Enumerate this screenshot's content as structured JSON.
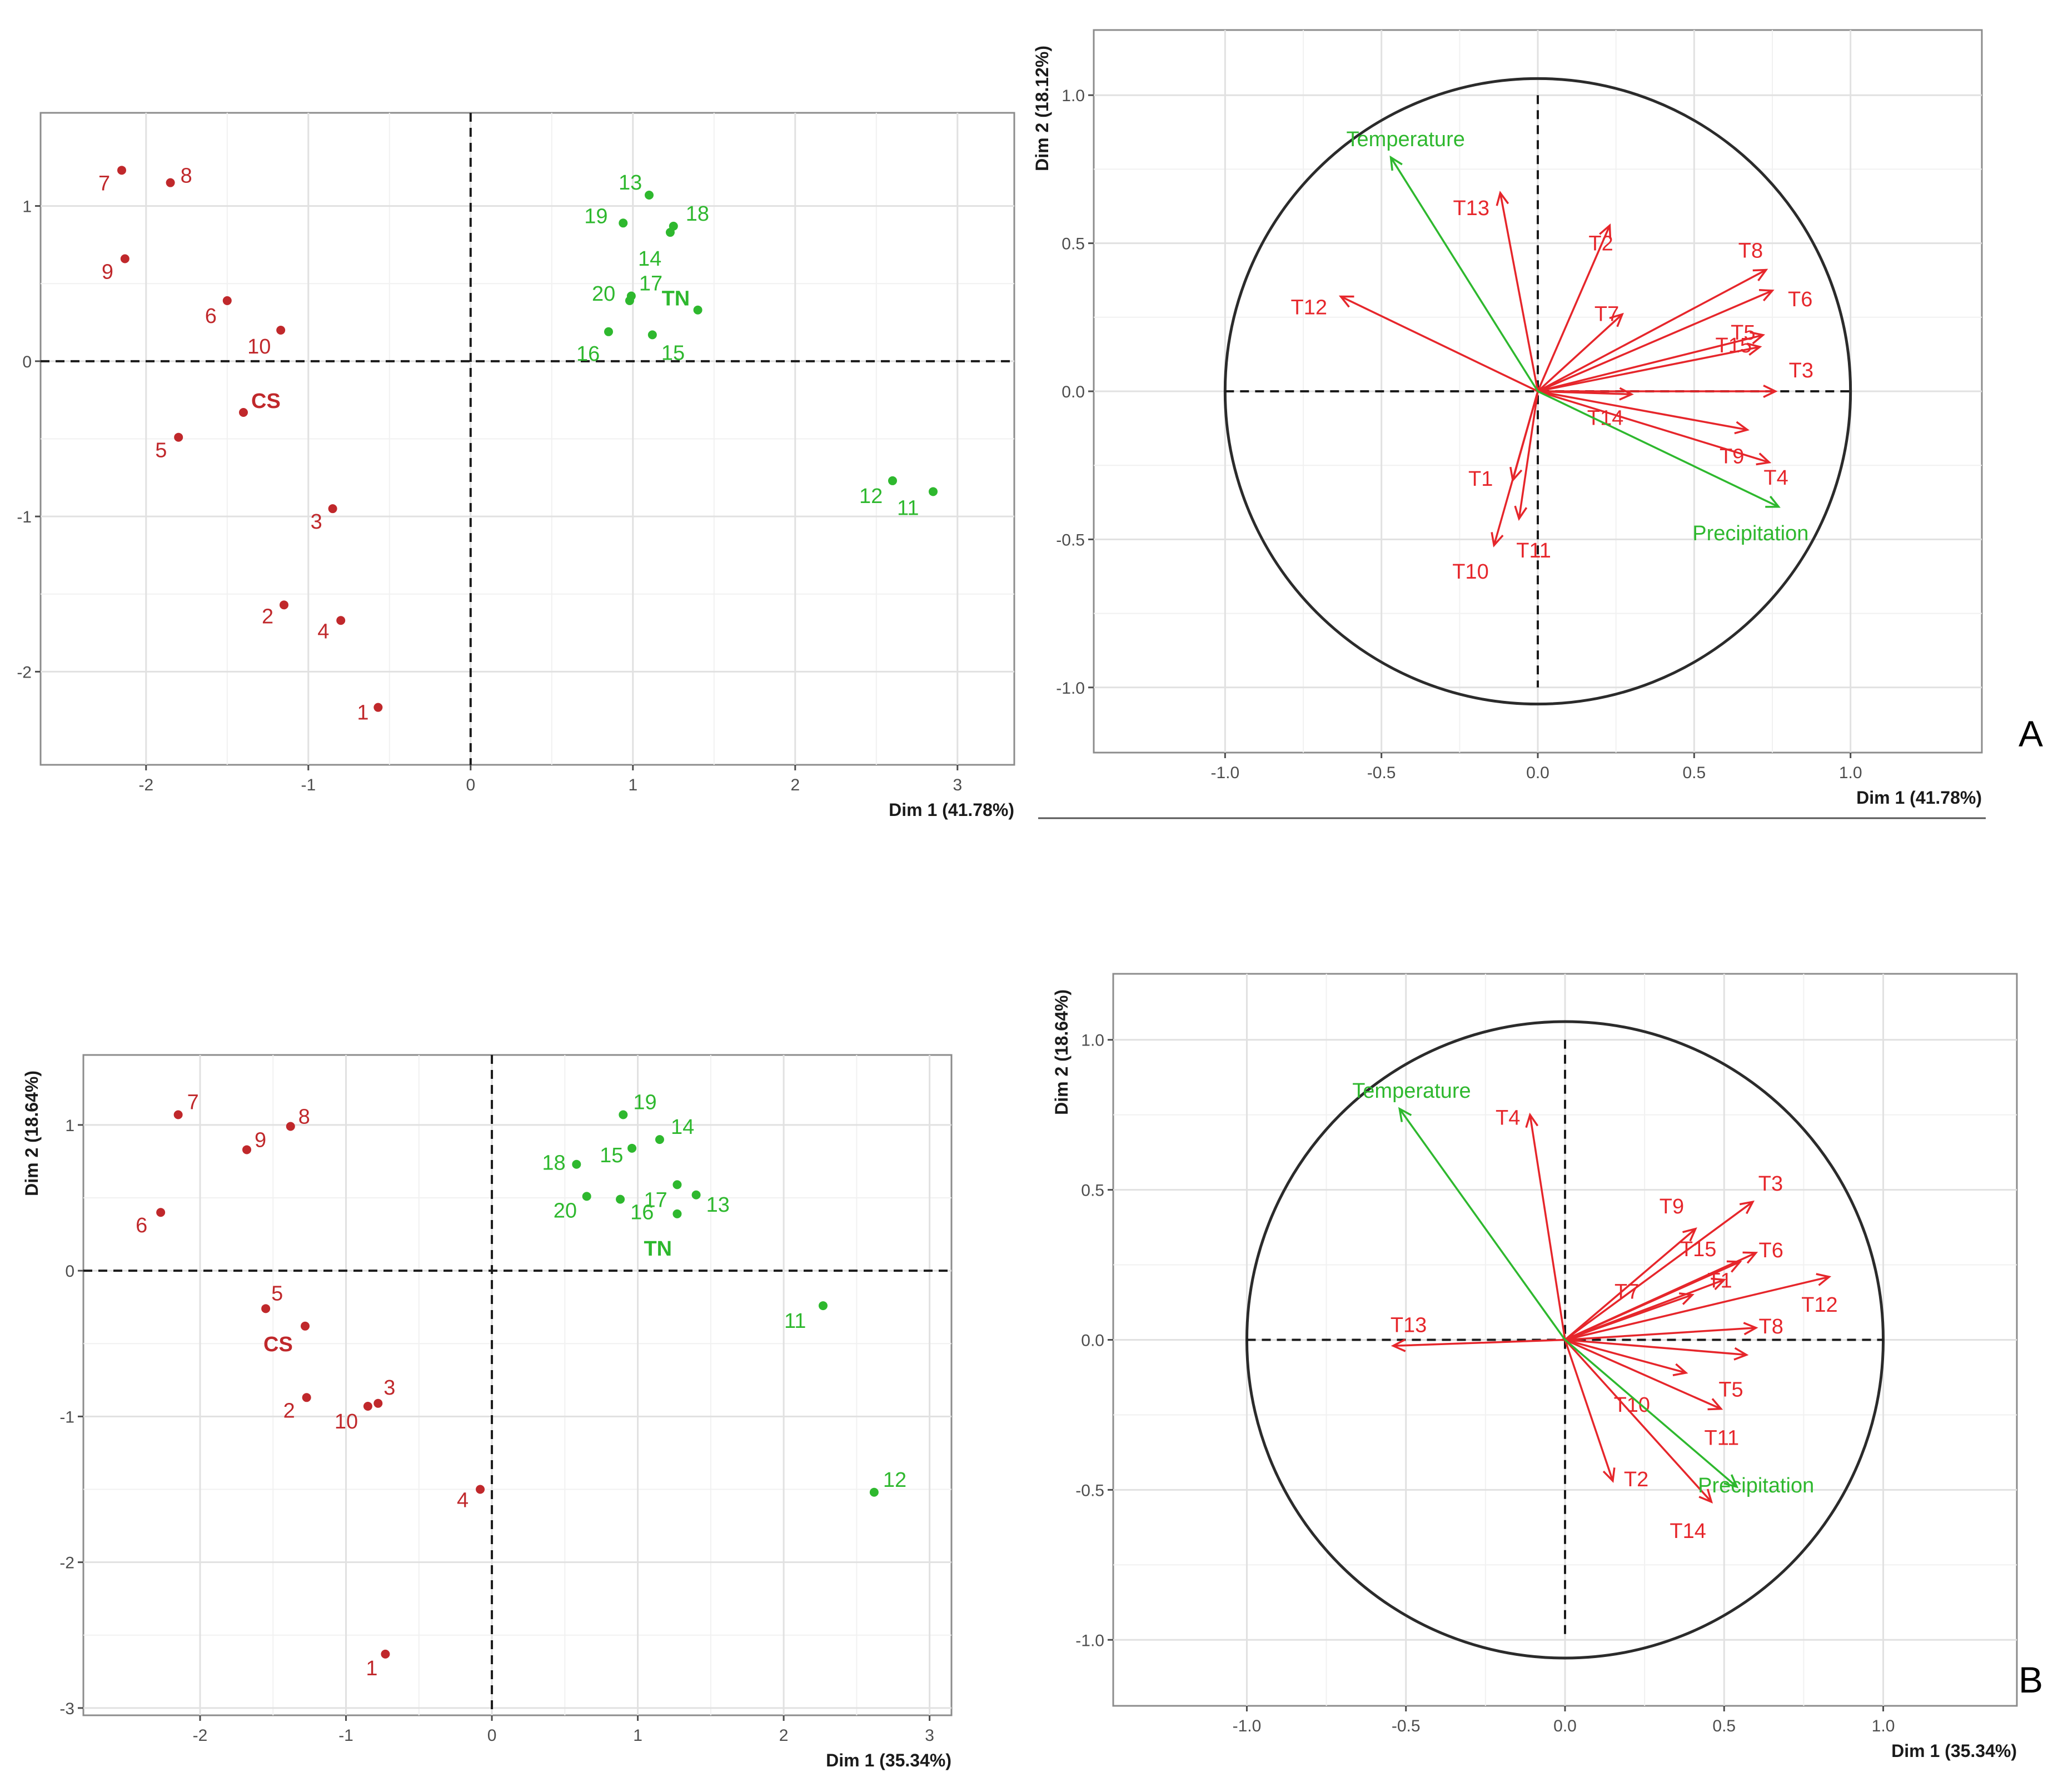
{
  "colors": {
    "cs": "#c0282b",
    "tn": "#2eb82e",
    "variable": "#e6262b",
    "supplementary": "#2eb82e"
  },
  "panel_tags": {
    "a": "A",
    "b": "B"
  },
  "chart_data": [
    {
      "id": "A-individuals",
      "type": "scatter",
      "xlabel": "Dim 1 (41.78%)",
      "ylabel": "Dim 2 (18.12%)",
      "xlim": [
        -2.65,
        3.35
      ],
      "ylim": [
        -2.6,
        1.6
      ],
      "xticks": [
        -2,
        -1,
        0,
        1,
        2,
        3
      ],
      "yticks": [
        -2,
        -1,
        0,
        1
      ],
      "series": [
        {
          "name": "CS",
          "color_key": "cs",
          "points": [
            {
              "label": "1",
              "x": -0.57,
              "y": -2.23
            },
            {
              "label": "2",
              "x": -1.15,
              "y": -1.57
            },
            {
              "label": "3",
              "x": -0.85,
              "y": -0.95
            },
            {
              "label": "4",
              "x": -0.8,
              "y": -1.67
            },
            {
              "label": "5",
              "x": -1.8,
              "y": -0.49
            },
            {
              "label": "6",
              "x": -1.5,
              "y": 0.39
            },
            {
              "label": "7",
              "x": -2.15,
              "y": 1.23
            },
            {
              "label": "8",
              "x": -1.85,
              "y": 1.15
            },
            {
              "label": "9",
              "x": -2.13,
              "y": 0.66
            },
            {
              "label": "10",
              "x": -1.17,
              "y": 0.2
            }
          ],
          "centroid": {
            "label": "CS",
            "x": -1.4,
            "y": -0.33
          }
        },
        {
          "name": "TN",
          "color_key": "tn",
          "points": [
            {
              "label": "11",
              "x": 2.85,
              "y": -0.84
            },
            {
              "label": "12",
              "x": 2.6,
              "y": -0.77
            },
            {
              "label": "13",
              "x": 1.1,
              "y": 1.07
            },
            {
              "label": "14",
              "x": 1.23,
              "y": 0.83
            },
            {
              "label": "15",
              "x": 1.12,
              "y": 0.17
            },
            {
              "label": "16",
              "x": 0.85,
              "y": 0.19
            },
            {
              "label": "17",
              "x": 0.99,
              "y": 0.42
            },
            {
              "label": "18",
              "x": 1.25,
              "y": 0.87
            },
            {
              "label": "19",
              "x": 0.94,
              "y": 0.89
            },
            {
              "label": "20",
              "x": 0.98,
              "y": 0.39
            }
          ],
          "centroid": {
            "label": "TN",
            "x": 1.4,
            "y": 0.33
          }
        }
      ]
    },
    {
      "id": "A-variables",
      "type": "scatter",
      "subtype": "correlation-circle",
      "xlabel": "Dim 1 (41.78%)",
      "ylabel": "Dim 2 (18.12%)",
      "xlim": [
        -1.42,
        1.42
      ],
      "ylim": [
        -1.22,
        1.22
      ],
      "xticks": [
        -1.0,
        -0.5,
        0.0,
        0.5,
        1.0
      ],
      "yticks": [
        -1.0,
        -0.5,
        0.0,
        0.5,
        1.0
      ],
      "tick_labels": [
        "-1.0",
        "-0.5",
        "0.0",
        "0.5",
        "1.0"
      ],
      "vectors": [
        {
          "label": "T1",
          "x": -0.08,
          "y": -0.3,
          "color_key": "variable"
        },
        {
          "label": "T2",
          "x": 0.23,
          "y": 0.56,
          "color_key": "variable"
        },
        {
          "label": "T3",
          "x": 0.76,
          "y": 0.0,
          "color_key": "variable"
        },
        {
          "label": "T4",
          "x": 0.74,
          "y": -0.24,
          "color_key": "variable"
        },
        {
          "label": "T5",
          "x": 0.72,
          "y": 0.19,
          "color_key": "variable"
        },
        {
          "label": "T6",
          "x": 0.75,
          "y": 0.34,
          "color_key": "variable"
        },
        {
          "label": "T7",
          "x": 0.27,
          "y": 0.26,
          "color_key": "variable"
        },
        {
          "label": "T8",
          "x": 0.73,
          "y": 0.41,
          "color_key": "variable"
        },
        {
          "label": "T9",
          "x": 0.67,
          "y": -0.13,
          "color_key": "variable"
        },
        {
          "label": "T10",
          "x": -0.14,
          "y": -0.52,
          "color_key": "variable"
        },
        {
          "label": "T11",
          "x": -0.06,
          "y": -0.43,
          "color_key": "variable"
        },
        {
          "label": "T12",
          "x": -0.63,
          "y": 0.32,
          "color_key": "variable"
        },
        {
          "label": "T13",
          "x": -0.12,
          "y": 0.67,
          "color_key": "variable"
        },
        {
          "label": "T14",
          "x": 0.3,
          "y": -0.01,
          "color_key": "variable"
        },
        {
          "label": "T15",
          "x": 0.71,
          "y": 0.15,
          "color_key": "variable"
        },
        {
          "label": "Temperature",
          "x": -0.47,
          "y": 0.79,
          "color_key": "supplementary"
        },
        {
          "label": "Precipitation",
          "x": 0.77,
          "y": -0.39,
          "color_key": "supplementary"
        }
      ]
    },
    {
      "id": "B-individuals",
      "type": "scatter",
      "xlabel": "Dim 1 (35.34%)",
      "ylabel": "Dim 2 (18.64%)",
      "xlim": [
        -2.8,
        3.15
      ],
      "ylim": [
        -3.05,
        1.48
      ],
      "xticks": [
        -2,
        -1,
        0,
        1,
        2,
        3
      ],
      "yticks": [
        -3,
        -2,
        -1,
        0,
        1
      ],
      "series": [
        {
          "name": "CS",
          "color_key": "cs",
          "points": [
            {
              "label": "1",
              "x": -0.73,
              "y": -2.63
            },
            {
              "label": "2",
              "x": -1.27,
              "y": -0.87
            },
            {
              "label": "3",
              "x": -0.78,
              "y": -0.91
            },
            {
              "label": "4",
              "x": -0.08,
              "y": -1.5
            },
            {
              "label": "5",
              "x": -1.55,
              "y": -0.26
            },
            {
              "label": "6",
              "x": -2.27,
              "y": 0.4
            },
            {
              "label": "7",
              "x": -2.15,
              "y": 1.07
            },
            {
              "label": "8",
              "x": -1.38,
              "y": 0.99
            },
            {
              "label": "9",
              "x": -1.68,
              "y": 0.83
            },
            {
              "label": "10",
              "x": -0.85,
              "y": -0.93
            }
          ],
          "centroid": {
            "label": "CS",
            "x": -1.28,
            "y": -0.38
          }
        },
        {
          "name": "TN",
          "color_key": "tn",
          "points": [
            {
              "label": "11",
              "x": 2.27,
              "y": -0.24
            },
            {
              "label": "12",
              "x": 2.62,
              "y": -1.52
            },
            {
              "label": "13",
              "x": 1.4,
              "y": 0.52
            },
            {
              "label": "14",
              "x": 1.15,
              "y": 0.9
            },
            {
              "label": "15",
              "x": 0.96,
              "y": 0.84
            },
            {
              "label": "16",
              "x": 0.88,
              "y": 0.49
            },
            {
              "label": "17",
              "x": 1.27,
              "y": 0.59
            },
            {
              "label": "18",
              "x": 0.58,
              "y": 0.73
            },
            {
              "label": "19",
              "x": 0.9,
              "y": 1.07
            },
            {
              "label": "20",
              "x": 0.65,
              "y": 0.51
            }
          ],
          "centroid": {
            "label": "TN",
            "x": 1.27,
            "y": 0.39
          }
        }
      ]
    },
    {
      "id": "B-variables",
      "type": "scatter",
      "subtype": "correlation-circle",
      "xlabel": "Dim 1 (35.34%)",
      "ylabel": "Dim 2 (18.64%)",
      "xlim": [
        -1.42,
        1.42
      ],
      "ylim": [
        -1.22,
        1.22
      ],
      "xticks": [
        -1.0,
        -0.5,
        0.0,
        0.5,
        1.0
      ],
      "yticks": [
        -1.0,
        -0.5,
        0.0,
        0.5,
        1.0
      ],
      "tick_labels": [
        "-1.0",
        "-0.5",
        "0.0",
        "0.5",
        "1.0"
      ],
      "vectors": [
        {
          "label": "T1",
          "x": 0.5,
          "y": 0.2,
          "color_key": "variable"
        },
        {
          "label": "T2",
          "x": 0.15,
          "y": -0.47,
          "color_key": "variable"
        },
        {
          "label": "T3",
          "x": 0.59,
          "y": 0.46,
          "color_key": "variable"
        },
        {
          "label": "T4",
          "x": -0.11,
          "y": 0.75,
          "color_key": "variable"
        },
        {
          "label": "T5",
          "x": 0.57,
          "y": -0.05,
          "color_key": "variable"
        },
        {
          "label": "T6",
          "x": 0.6,
          "y": 0.29,
          "color_key": "variable"
        },
        {
          "label": "T7",
          "x": 0.4,
          "y": 0.15,
          "color_key": "variable"
        },
        {
          "label": "T8",
          "x": 0.6,
          "y": 0.04,
          "color_key": "variable"
        },
        {
          "label": "T9",
          "x": 0.41,
          "y": 0.37,
          "color_key": "variable"
        },
        {
          "label": "T10",
          "x": 0.38,
          "y": -0.11,
          "color_key": "variable"
        },
        {
          "label": "T11",
          "x": 0.49,
          "y": -0.23,
          "color_key": "variable"
        },
        {
          "label": "T12",
          "x": 0.83,
          "y": 0.21,
          "color_key": "variable"
        },
        {
          "label": "T13",
          "x": -0.54,
          "y": -0.02,
          "color_key": "variable"
        },
        {
          "label": "T14",
          "x": 0.46,
          "y": -0.54,
          "color_key": "variable"
        },
        {
          "label": "T15",
          "x": 0.55,
          "y": 0.26,
          "color_key": "variable"
        },
        {
          "label": "Temperature",
          "x": -0.52,
          "y": 0.77,
          "color_key": "supplementary"
        },
        {
          "label": "Precipitation",
          "x": 0.54,
          "y": -0.49,
          "color_key": "supplementary"
        }
      ]
    }
  ]
}
